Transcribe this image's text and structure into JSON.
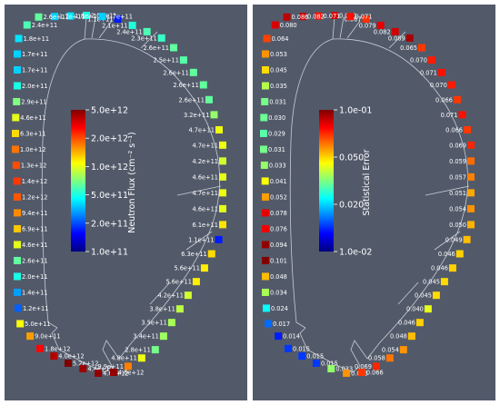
{
  "panels": [
    {
      "id": "neutron-flux",
      "colorbar": {
        "title": "Neutron Flux (cm⁻² s⁻¹)",
        "ticks": [
          "5.0e+12",
          "2.0e+12",
          "1.0e+12",
          "5.0e+11",
          "2.0e+11",
          "1.0e+11"
        ]
      },
      "points": [
        {
          "label": "2.0e+11",
          "v": 0.4
        },
        {
          "label": "1.8e+11",
          "v": 0.35
        },
        {
          "label": "1.7e+11",
          "v": 0.33
        },
        {
          "label": "2.6e+11",
          "v": 0.47
        },
        {
          "label": "2.4e+11",
          "v": 0.45
        },
        {
          "label": "1.8e+11",
          "v": 0.35
        },
        {
          "label": "1.7e+11",
          "v": 0.33
        },
        {
          "label": "1.7e+11",
          "v": 0.33
        },
        {
          "label": "2.0e+11",
          "v": 0.4
        },
        {
          "label": "2.9e+11",
          "v": 0.5
        },
        {
          "label": "4.6e+11",
          "v": 0.6
        },
        {
          "label": "6.3e+11",
          "v": 0.66
        },
        {
          "label": "1.0e+12",
          "v": 0.76
        },
        {
          "label": "1.3e+12",
          "v": 0.8
        },
        {
          "label": "1.4e+12",
          "v": 0.82
        },
        {
          "label": "1.2e+12",
          "v": 0.79
        },
        {
          "label": "9.4e+11",
          "v": 0.74
        },
        {
          "label": "6.9e+11",
          "v": 0.68
        },
        {
          "label": "4.6e+11",
          "v": 0.6
        },
        {
          "label": "2.6e+11",
          "v": 0.47
        },
        {
          "label": "2.0e+11",
          "v": 0.4
        },
        {
          "label": "1.4e+11",
          "v": 0.28
        },
        {
          "label": "1.2e+11",
          "v": 0.22
        },
        {
          "label": "5.0e+11",
          "v": 0.62
        },
        {
          "label": "9.0e+11",
          "v": 0.72
        },
        {
          "label": "1.8e+12",
          "v": 0.87
        },
        {
          "label": "4.0e+12",
          "v": 0.95
        },
        {
          "label": "5.2e+12",
          "v": 1.0
        },
        {
          "label": "4.4e+12",
          "v": 0.97
        },
        {
          "label": "4.6e+12",
          "v": 0.98
        },
        {
          "label": "4.6e+12",
          "v": 0.98
        },
        {
          "label": "9.9e+11",
          "v": 0.75
        },
        {
          "label": "4.8e+11",
          "v": 0.61
        },
        {
          "label": "2.8e+11",
          "v": 0.49
        },
        {
          "label": "3.4e+11",
          "v": 0.53
        },
        {
          "label": "3.5e+11",
          "v": 0.54
        },
        {
          "label": "3.8e+11",
          "v": 0.56
        },
        {
          "label": "4.2e+11",
          "v": 0.58
        },
        {
          "label": "5.6e+11",
          "v": 0.64
        },
        {
          "label": "5.6e+11",
          "v": 0.64
        },
        {
          "label": "6.3e+11",
          "v": 0.66
        },
        {
          "label": "1.1e+11",
          "v": 0.15
        },
        {
          "label": "6.1e+11",
          "v": 0.65
        },
        {
          "label": "4.6e+11",
          "v": 0.6
        },
        {
          "label": "4.7e+11",
          "v": 0.61
        },
        {
          "label": "4.6e+11",
          "v": 0.6
        },
        {
          "label": "4.2e+11",
          "v": 0.58
        },
        {
          "label": "4.7e+11",
          "v": 0.61
        },
        {
          "label": "4.7e+11",
          "v": 0.61
        },
        {
          "label": "3.2e+11",
          "v": 0.52
        },
        {
          "label": "2.6e+11",
          "v": 0.47
        },
        {
          "label": "2.6e+11",
          "v": 0.47
        },
        {
          "label": "2.6e+11",
          "v": 0.47
        },
        {
          "label": "2.5e+11",
          "v": 0.46
        },
        {
          "label": "2.6e+11",
          "v": 0.47
        },
        {
          "label": "2.3e+11",
          "v": 0.43
        },
        {
          "label": "2.4e+11",
          "v": 0.45
        },
        {
          "label": "2.1e+11",
          "v": 0.41
        },
        {
          "label": "1.1e+11",
          "v": 0.15
        },
        {
          "label": "1.7e+11",
          "v": 0.33
        }
      ]
    },
    {
      "id": "statistical-error",
      "colorbar": {
        "title": "Statistical Error",
        "ticks": [
          "1.0e-01",
          "0.050",
          "0.020",
          "1.0e-02"
        ]
      },
      "points": [
        {
          "label": "0.080",
          "v": 0.91
        },
        {
          "label": "0.071",
          "v": 0.86
        },
        {
          "label": "0.082",
          "v": 0.92
        },
        {
          "label": "0.086",
          "v": 0.94
        },
        {
          "label": "0.080",
          "v": 0.91
        },
        {
          "label": "0.064",
          "v": 0.81
        },
        {
          "label": "0.053",
          "v": 0.73
        },
        {
          "label": "0.045",
          "v": 0.66
        },
        {
          "label": "0.035",
          "v": 0.55
        },
        {
          "label": "0.031",
          "v": 0.49
        },
        {
          "label": "0.030",
          "v": 0.48
        },
        {
          "label": "0.029",
          "v": 0.46
        },
        {
          "label": "0.031",
          "v": 0.49
        },
        {
          "label": "0.033",
          "v": 0.52
        },
        {
          "label": "0.041",
          "v": 0.62
        },
        {
          "label": "0.052",
          "v": 0.72
        },
        {
          "label": "0.078",
          "v": 0.9
        },
        {
          "label": "0.076",
          "v": 0.89
        },
        {
          "label": "0.094",
          "v": 0.98
        },
        {
          "label": "0.101",
          "v": 1.0
        },
        {
          "label": "0.048",
          "v": 0.69
        },
        {
          "label": "0.034",
          "v": 0.54
        },
        {
          "label": "0.024",
          "v": 0.38
        },
        {
          "label": "0.017",
          "v": 0.23
        },
        {
          "label": "0.014",
          "v": 0.15
        },
        {
          "label": "0.015",
          "v": 0.18
        },
        {
          "label": "0.015",
          "v": 0.18
        },
        {
          "label": "0.015",
          "v": 0.18
        },
        {
          "label": "0.033",
          "v": 0.52
        },
        {
          "label": "0.053",
          "v": 0.73
        },
        {
          "label": "0.066",
          "v": 0.82
        },
        {
          "label": "0.069",
          "v": 0.84
        },
        {
          "label": "0.058",
          "v": 0.76
        },
        {
          "label": "0.054",
          "v": 0.73
        },
        {
          "label": "0.048",
          "v": 0.69
        },
        {
          "label": "0.046",
          "v": 0.67
        },
        {
          "label": "0.040",
          "v": 0.6
        },
        {
          "label": "0.045",
          "v": 0.66
        },
        {
          "label": "0.045",
          "v": 0.66
        },
        {
          "label": "0.046",
          "v": 0.67
        },
        {
          "label": "0.046",
          "v": 0.67
        },
        {
          "label": "0.049",
          "v": 0.69
        },
        {
          "label": "0.050",
          "v": 0.7
        },
        {
          "label": "0.054",
          "v": 0.73
        },
        {
          "label": "0.051",
          "v": 0.71
        },
        {
          "label": "0.057",
          "v": 0.75
        },
        {
          "label": "0.059",
          "v": 0.77
        },
        {
          "label": "0.069",
          "v": 0.84
        },
        {
          "label": "0.066",
          "v": 0.82
        },
        {
          "label": "0.071",
          "v": 0.86
        },
        {
          "label": "0.066",
          "v": 0.82
        },
        {
          "label": "0.070",
          "v": 0.85
        },
        {
          "label": "0.071",
          "v": 0.86
        },
        {
          "label": "0.070",
          "v": 0.85
        },
        {
          "label": "0.065",
          "v": 0.82
        },
        {
          "label": "0.089",
          "v": 0.96
        },
        {
          "label": "0.082",
          "v": 0.92
        },
        {
          "label": "0.079",
          "v": 0.9
        },
        {
          "label": "0.067",
          "v": 0.83
        },
        {
          "label": "0.071",
          "v": 0.86
        }
      ]
    }
  ]
}
